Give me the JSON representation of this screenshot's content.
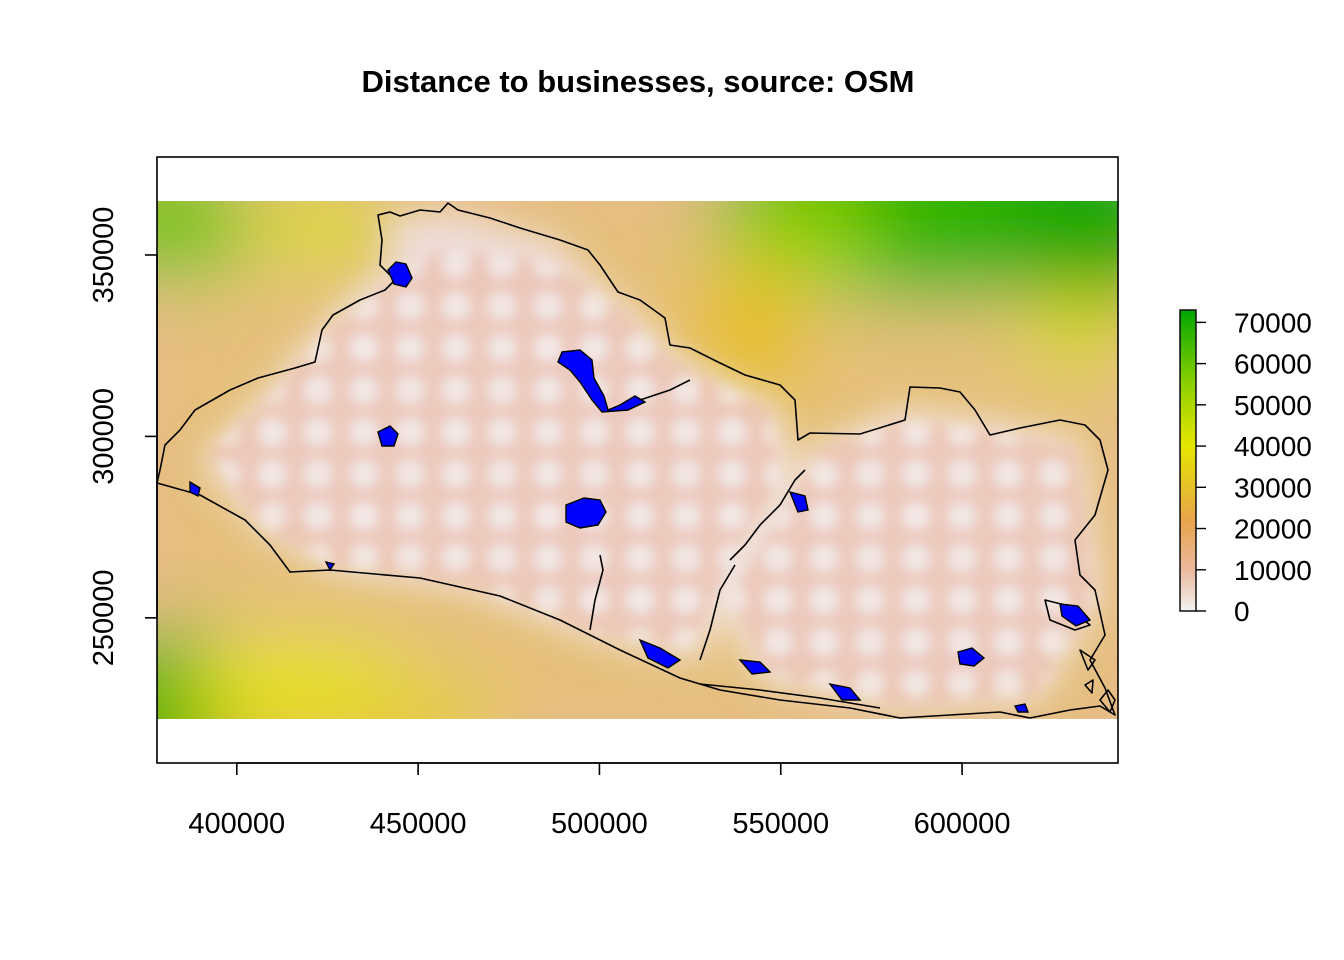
{
  "title": "Distance to businesses, source: OSM",
  "chart_data": {
    "type": "heatmap",
    "title": "Distance to businesses, source: OSM",
    "xlabel": "",
    "ylabel": "",
    "xlim": [
      378000,
      643000
    ],
    "ylim": [
      210000,
      377000
    ],
    "raster_extent": {
      "x": [
        378000,
        643000
      ],
      "y": [
        227000,
        370000
      ]
    },
    "x_ticks": [
      400000,
      450000,
      500000,
      550000,
      600000
    ],
    "y_ticks": [
      250000,
      300000,
      350000
    ],
    "x_tick_labels": [
      "400000",
      "450000",
      "500000",
      "550000",
      "600000"
    ],
    "y_tick_labels": [
      "250000",
      "300000",
      "350000"
    ],
    "legend": {
      "position": "right",
      "range": [
        0,
        73000
      ],
      "ticks": [
        0,
        10000,
        20000,
        30000,
        40000,
        50000,
        60000,
        70000
      ],
      "tick_labels": [
        "0",
        "10000",
        "20000",
        "30000",
        "40000",
        "50000",
        "60000",
        "70000"
      ],
      "colors": [
        "#f2f2f2",
        "#eab89c",
        "#e8a44a",
        "#e6e600",
        "#63c600",
        "#00a600"
      ]
    },
    "layers": [
      "distance raster",
      "country boundary outline",
      "water bodies"
    ],
    "water_color": "#0000ff",
    "grid": false
  }
}
